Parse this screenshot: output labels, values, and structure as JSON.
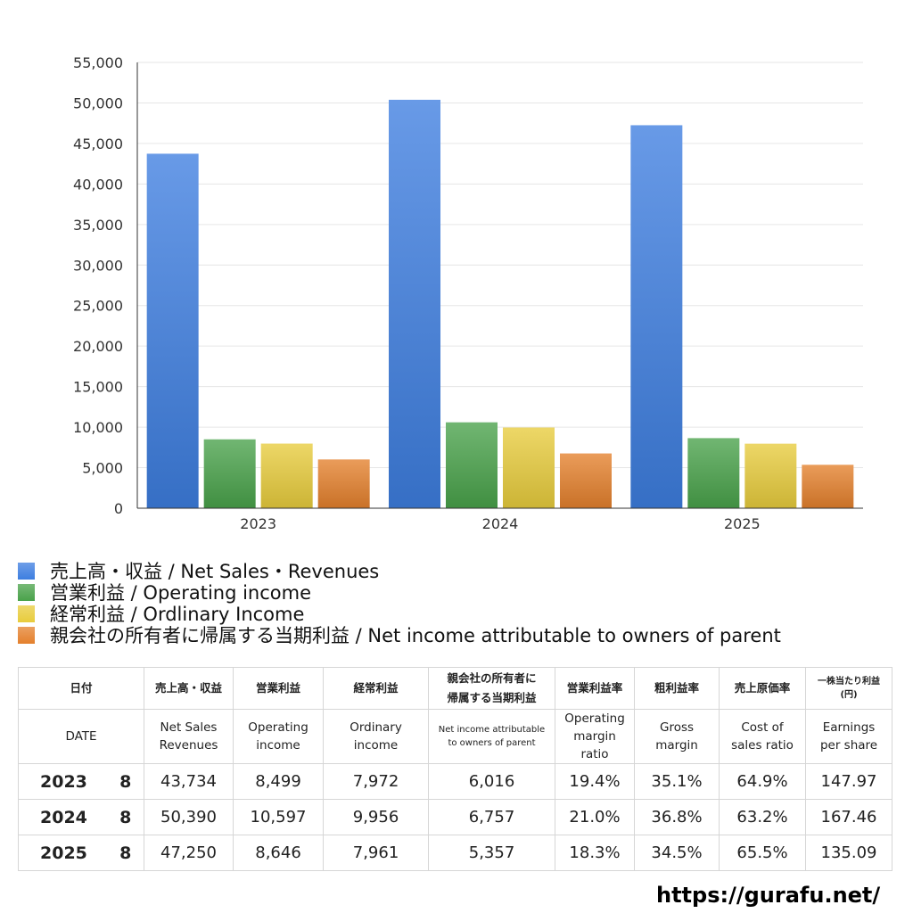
{
  "chart_data": {
    "type": "bar",
    "categories": [
      "2023",
      "2024",
      "2025"
    ],
    "series": [
      {
        "name": "売上高・収益 / Net Sales・Revenues",
        "values": [
          43734,
          50390,
          47250
        ],
        "color": "#3d7ee0"
      },
      {
        "name": "営業利益 / Operating income",
        "values": [
          8499,
          10597,
          8646
        ],
        "color": "#49a24a"
      },
      {
        "name": "経常利益 / Ordlinary Income",
        "values": [
          7972,
          9956,
          7961
        ],
        "color": "#e8cc3c"
      },
      {
        "name": "親会社の所有者に帰属する当期利益 / Net income attributable to owners of parent",
        "values": [
          6016,
          6757,
          5357
        ],
        "color": "#e4802c"
      }
    ],
    "ylim": [
      0,
      55000
    ],
    "yticks": [
      0,
      5000,
      10000,
      15000,
      20000,
      25000,
      30000,
      35000,
      40000,
      45000,
      50000,
      55000
    ],
    "ytick_labels": [
      "0",
      "5,000",
      "10,000",
      "15,000",
      "20,000",
      "25,000",
      "30,000",
      "35,000",
      "40,000",
      "45,000",
      "50,000",
      "55,000"
    ],
    "grid": true,
    "legend_position": "bottom-left"
  },
  "table": {
    "date_jp": "日付",
    "date_en": "DATE",
    "columns": [
      {
        "jp": "売上高・収益",
        "en": [
          "Net Sales",
          "Revenues"
        ]
      },
      {
        "jp": "営業利益",
        "en": [
          "Operating",
          "income"
        ]
      },
      {
        "jp": "経常利益",
        "en": [
          "Ordinary",
          "income"
        ]
      },
      {
        "jp": [
          "親会社の所有者に",
          "帰属する当期利益"
        ],
        "en": [
          "Net income attributable",
          "to owners of parent"
        ]
      },
      {
        "jp": "営業利益率",
        "en": [
          "Operating",
          "margin",
          "ratio"
        ]
      },
      {
        "jp": "粗利益率",
        "en": [
          "Gross",
          "margin"
        ]
      },
      {
        "jp": "売上原価率",
        "en": [
          "Cost of",
          "sales ratio"
        ]
      },
      {
        "jp": [
          "一株当たり利益",
          "(円)"
        ],
        "en": [
          "Earnings",
          "per share"
        ]
      }
    ],
    "rows": [
      {
        "year": "2023",
        "month": "8",
        "cells": [
          "43,734",
          "8,499",
          "7,972",
          "6,016",
          "19.4%",
          "35.1%",
          "64.9%",
          "147.97"
        ]
      },
      {
        "year": "2024",
        "month": "8",
        "cells": [
          "50,390",
          "10,597",
          "9,956",
          "6,757",
          "21.0%",
          "36.8%",
          "63.2%",
          "167.46"
        ]
      },
      {
        "year": "2025",
        "month": "8",
        "cells": [
          "47,250",
          "8,646",
          "7,961",
          "5,357",
          "18.3%",
          "34.5%",
          "65.5%",
          "135.09"
        ]
      }
    ]
  },
  "footer": {
    "url": "https://gurafu.net/"
  }
}
